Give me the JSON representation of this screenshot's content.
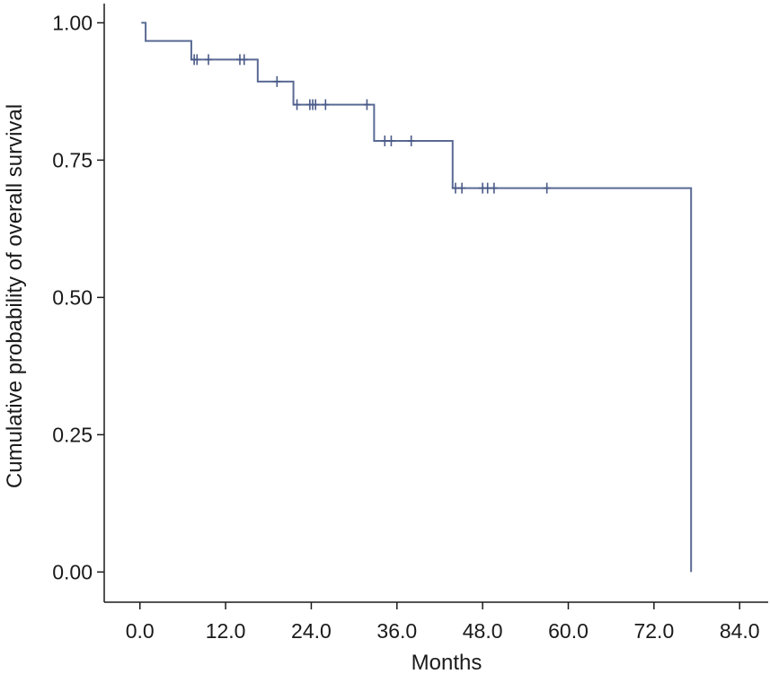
{
  "chart_data": {
    "type": "line",
    "subtype": "kaplan-meier-step",
    "title": "",
    "xlabel": "Months",
    "ylabel": "Cumulative probability of overall survival",
    "xlim": [
      -5,
      88
    ],
    "ylim": [
      -0.055,
      1.035
    ],
    "xticks": [
      0,
      12,
      24,
      36,
      48,
      60,
      72,
      84
    ],
    "xtick_labels": [
      "0.0",
      "12.0",
      "24.0",
      "36.0",
      "48.0",
      "60.0",
      "72.0",
      "84.0"
    ],
    "yticks": [
      0,
      0.25,
      0.5,
      0.75,
      1
    ],
    "ytick_labels": [
      "0.00",
      "0.25",
      "0.50",
      "0.75",
      "1.00"
    ],
    "grid": false,
    "legend": "none",
    "line_color": "#5a6a94",
    "censor_color": "#4a5a88",
    "steps": [
      {
        "x": 0.2,
        "y": 1.0
      },
      {
        "x": 0.8,
        "y": 0.967
      },
      {
        "x": 7.2,
        "y": 0.933
      },
      {
        "x": 16.5,
        "y": 0.893
      },
      {
        "x": 21.5,
        "y": 0.851
      },
      {
        "x": 32.8,
        "y": 0.785
      },
      {
        "x": 43.8,
        "y": 0.699
      },
      {
        "x": 77.2,
        "y": 0.0
      }
    ],
    "end_x": 77.2,
    "censored": [
      {
        "x": 7.6,
        "y": 0.933
      },
      {
        "x": 8.0,
        "y": 0.933
      },
      {
        "x": 9.6,
        "y": 0.933
      },
      {
        "x": 14.0,
        "y": 0.933
      },
      {
        "x": 14.6,
        "y": 0.933
      },
      {
        "x": 19.2,
        "y": 0.893
      },
      {
        "x": 22.0,
        "y": 0.851
      },
      {
        "x": 23.8,
        "y": 0.851
      },
      {
        "x": 24.2,
        "y": 0.851
      },
      {
        "x": 24.6,
        "y": 0.851
      },
      {
        "x": 26.0,
        "y": 0.851
      },
      {
        "x": 31.8,
        "y": 0.851
      },
      {
        "x": 34.3,
        "y": 0.785
      },
      {
        "x": 35.2,
        "y": 0.785
      },
      {
        "x": 38.0,
        "y": 0.785
      },
      {
        "x": 44.2,
        "y": 0.699
      },
      {
        "x": 45.1,
        "y": 0.699
      },
      {
        "x": 48.0,
        "y": 0.699
      },
      {
        "x": 48.7,
        "y": 0.699
      },
      {
        "x": 49.6,
        "y": 0.699
      },
      {
        "x": 57.0,
        "y": 0.699
      }
    ]
  }
}
